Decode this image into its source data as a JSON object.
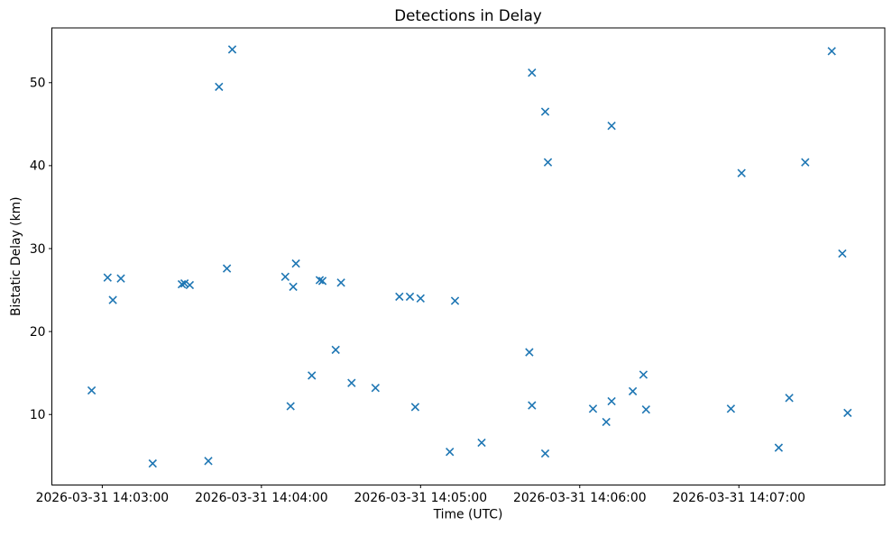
{
  "chart_data": {
    "type": "scatter",
    "title": "Detections in Delay",
    "xlabel": "Time (UTC)",
    "ylabel": "Bistatic Delay (km)",
    "marker": "x",
    "marker_color": "#1f77b4",
    "axis_color": "#000000",
    "grid": false,
    "legend": null,
    "xlim": [
      "2026-03-31 14:02:41",
      "2026-03-31 14:07:55"
    ],
    "ylim": [
      1.5,
      56.6
    ],
    "x_tick_labels": [
      "2026-03-31 14:03:00",
      "2026-03-31 14:04:00",
      "2026-03-31 14:05:00",
      "2026-03-31 14:06:00",
      "2026-03-31 14:07:00"
    ],
    "y_tick_labels": [
      "10",
      "20",
      "30",
      "40",
      "50"
    ],
    "y_tick_values": [
      10,
      20,
      30,
      40,
      50
    ],
    "points": [
      {
        "t": "2026-03-31 14:02:56",
        "y": 12.9
      },
      {
        "t": "2026-03-31 14:03:02",
        "y": 26.5
      },
      {
        "t": "2026-03-31 14:03:04",
        "y": 23.8
      },
      {
        "t": "2026-03-31 14:03:07",
        "y": 26.4
      },
      {
        "t": "2026-03-31 14:03:19",
        "y": 4.1
      },
      {
        "t": "2026-03-31 14:03:30",
        "y": 25.7
      },
      {
        "t": "2026-03-31 14:03:31",
        "y": 25.8
      },
      {
        "t": "2026-03-31 14:03:33",
        "y": 25.6
      },
      {
        "t": "2026-03-31 14:03:40",
        "y": 4.4
      },
      {
        "t": "2026-03-31 14:03:44",
        "y": 49.5
      },
      {
        "t": "2026-03-31 14:03:47",
        "y": 27.6
      },
      {
        "t": "2026-03-31 14:03:49",
        "y": 54.0
      },
      {
        "t": "2026-03-31 14:04:09",
        "y": 26.6
      },
      {
        "t": "2026-03-31 14:04:11",
        "y": 11.0
      },
      {
        "t": "2026-03-31 14:04:12",
        "y": 25.4
      },
      {
        "t": "2026-03-31 14:04:13",
        "y": 28.2
      },
      {
        "t": "2026-03-31 14:04:19",
        "y": 14.7
      },
      {
        "t": "2026-03-31 14:04:22",
        "y": 26.2
      },
      {
        "t": "2026-03-31 14:04:23",
        "y": 26.1
      },
      {
        "t": "2026-03-31 14:04:28",
        "y": 17.8
      },
      {
        "t": "2026-03-31 14:04:30",
        "y": 25.9
      },
      {
        "t": "2026-03-31 14:04:34",
        "y": 13.8
      },
      {
        "t": "2026-03-31 14:04:43",
        "y": 13.2
      },
      {
        "t": "2026-03-31 14:04:52",
        "y": 24.2
      },
      {
        "t": "2026-03-31 14:04:56",
        "y": 24.2
      },
      {
        "t": "2026-03-31 14:04:58",
        "y": 10.9
      },
      {
        "t": "2026-03-31 14:05:00",
        "y": 24.0
      },
      {
        "t": "2026-03-31 14:05:11",
        "y": 5.5
      },
      {
        "t": "2026-03-31 14:05:13",
        "y": 23.7
      },
      {
        "t": "2026-03-31 14:05:23",
        "y": 6.6
      },
      {
        "t": "2026-03-31 14:05:41",
        "y": 17.5
      },
      {
        "t": "2026-03-31 14:05:42",
        "y": 51.2
      },
      {
        "t": "2026-03-31 14:05:42",
        "y": 11.1
      },
      {
        "t": "2026-03-31 14:05:47",
        "y": 46.5
      },
      {
        "t": "2026-03-31 14:05:47",
        "y": 5.3
      },
      {
        "t": "2026-03-31 14:05:48",
        "y": 40.4
      },
      {
        "t": "2026-03-31 14:06:05",
        "y": 10.7
      },
      {
        "t": "2026-03-31 14:06:10",
        "y": 9.1
      },
      {
        "t": "2026-03-31 14:06:12",
        "y": 44.8
      },
      {
        "t": "2026-03-31 14:06:12",
        "y": 11.6
      },
      {
        "t": "2026-03-31 14:06:20",
        "y": 12.8
      },
      {
        "t": "2026-03-31 14:06:24",
        "y": 14.8
      },
      {
        "t": "2026-03-31 14:06:25",
        "y": 10.6
      },
      {
        "t": "2026-03-31 14:06:57",
        "y": 10.7
      },
      {
        "t": "2026-03-31 14:07:01",
        "y": 39.1
      },
      {
        "t": "2026-03-31 14:07:15",
        "y": 6.0
      },
      {
        "t": "2026-03-31 14:07:19",
        "y": 12.0
      },
      {
        "t": "2026-03-31 14:07:25",
        "y": 40.4
      },
      {
        "t": "2026-03-31 14:07:35",
        "y": 53.8
      },
      {
        "t": "2026-03-31 14:07:39",
        "y": 29.4
      },
      {
        "t": "2026-03-31 14:07:41",
        "y": 10.2
      }
    ]
  }
}
